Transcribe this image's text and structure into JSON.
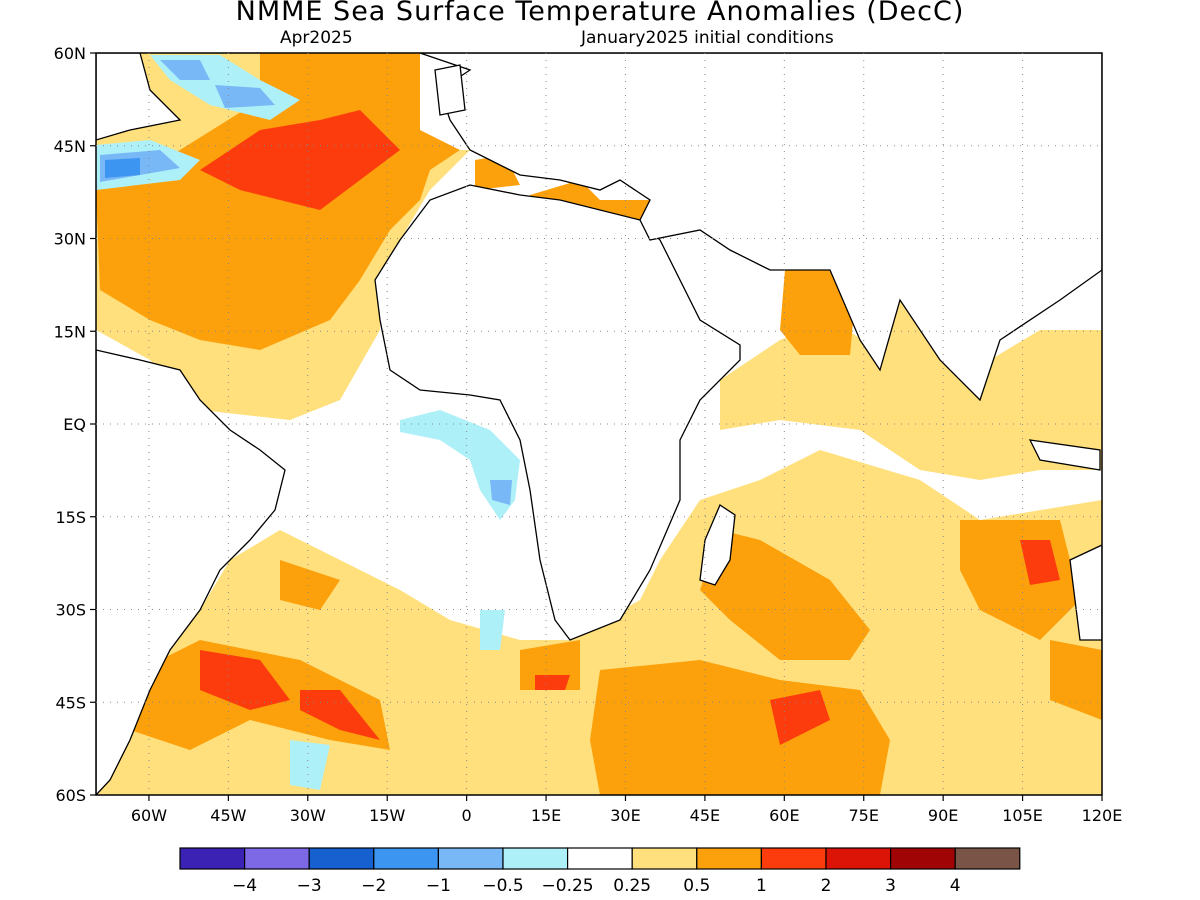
{
  "title": "NMME Sea Surface Temperature Anomalies (DecC)",
  "subtitle_left": "Apr2025",
  "subtitle_right": "January2025 initial conditions",
  "map": {
    "lat_labels": [
      "60N",
      "45N",
      "30N",
      "15N",
      "EQ",
      "15S",
      "30S",
      "45S",
      "60S"
    ],
    "lon_labels": [
      "60W",
      "45W",
      "30W",
      "15W",
      "0",
      "15E",
      "30E",
      "45E",
      "60E",
      "75E",
      "90E",
      "105E",
      "120E"
    ],
    "lon_range": [
      -70,
      120
    ],
    "lat_range": [
      -60,
      60
    ]
  },
  "colorbar": {
    "colors": [
      "#3b22b4",
      "#7d68e6",
      "#1660d0",
      "#3d95f2",
      "#78b8f6",
      "#aef0f8",
      "#ffffff",
      "#ffe07c",
      "#fca00c",
      "#fc3c0c",
      "#dc1408",
      "#a00404",
      "#7a5446"
    ],
    "labels": [
      "−4",
      "−3",
      "−2",
      "−1",
      "−0.5",
      "−0.25",
      "0.25",
      "0.5",
      "1",
      "2",
      "3",
      "4"
    ]
  }
}
